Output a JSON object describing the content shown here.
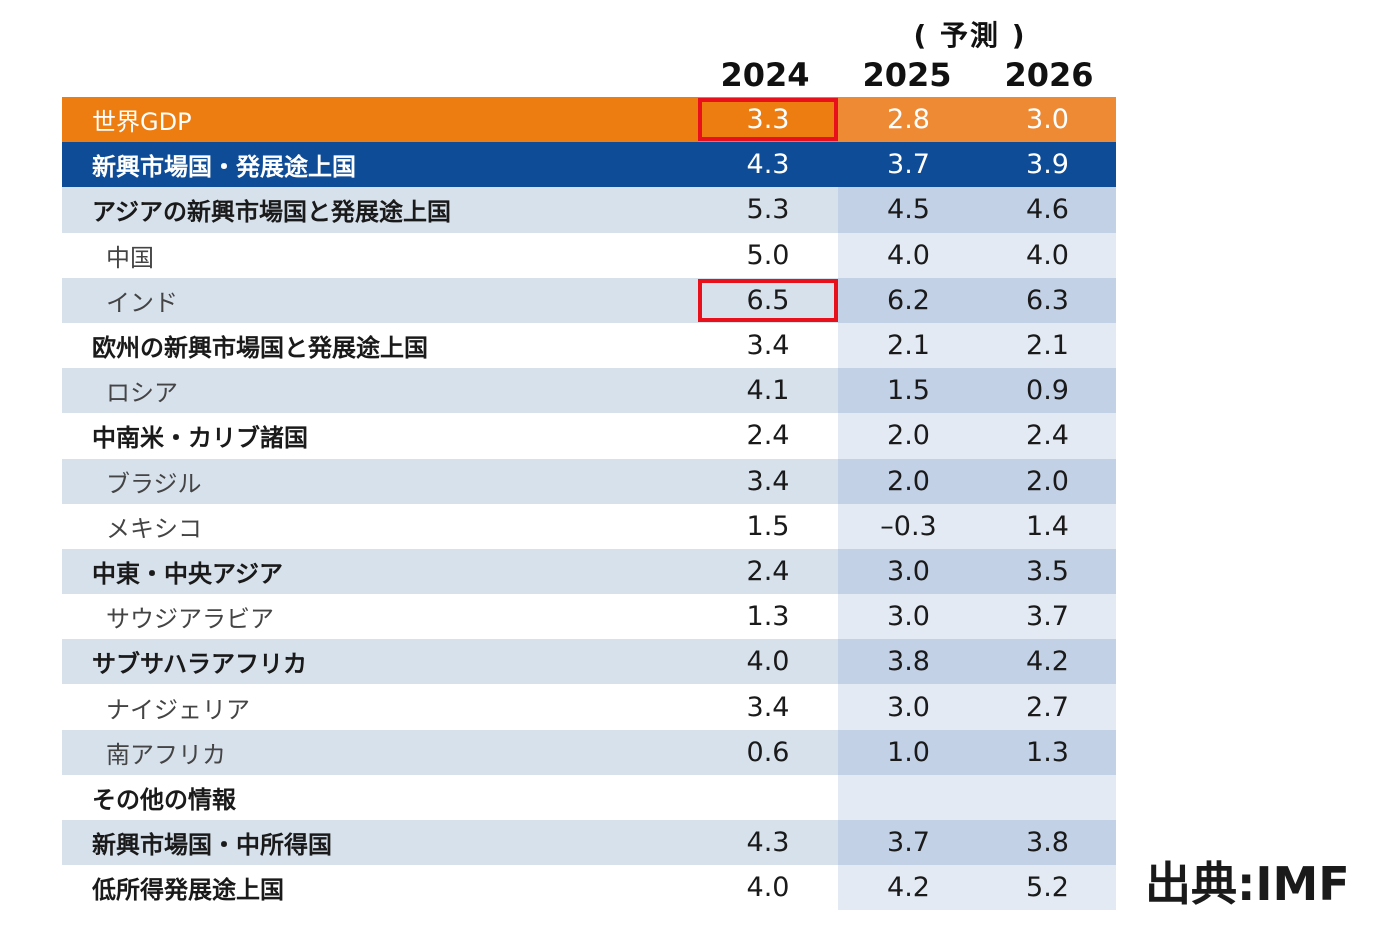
{
  "chart_data": {
    "type": "table",
    "forecast_label": "( 予測 )",
    "columns": [
      "2024",
      "2025",
      "2026"
    ],
    "rows": [
      {
        "label": "世界GDP",
        "values": [
          "3.3",
          "2.8",
          "3.0"
        ],
        "style": "world",
        "highlight": true
      },
      {
        "label": "新興市場国・発展途上国",
        "values": [
          "4.3",
          "3.7",
          "3.9"
        ],
        "style": "emerging"
      },
      {
        "label": "アジアの新興市場国と発展途上国",
        "values": [
          "5.3",
          "4.5",
          "4.6"
        ],
        "style": "light",
        "level": "main"
      },
      {
        "label": "中国",
        "values": [
          "5.0",
          "4.0",
          "4.0"
        ],
        "style": "white",
        "level": "sub"
      },
      {
        "label": "インド",
        "values": [
          "6.5",
          "6.2",
          "6.3"
        ],
        "style": "light",
        "level": "sub",
        "highlight": true
      },
      {
        "label": "欧州の新興市場国と発展途上国",
        "values": [
          "3.4",
          "2.1",
          "2.1"
        ],
        "style": "white",
        "level": "main"
      },
      {
        "label": "ロシア",
        "values": [
          "4.1",
          "1.5",
          "0.9"
        ],
        "style": "light",
        "level": "sub"
      },
      {
        "label": "中南米・カリブ諸国",
        "values": [
          "2.4",
          "2.0",
          "2.4"
        ],
        "style": "white",
        "level": "main"
      },
      {
        "label": "ブラジル",
        "values": [
          "3.4",
          "2.0",
          "2.0"
        ],
        "style": "light",
        "level": "sub"
      },
      {
        "label": "メキシコ",
        "values": [
          "1.5",
          "–0.3",
          "1.4"
        ],
        "style": "white",
        "level": "sub"
      },
      {
        "label": "中東・中央アジア",
        "values": [
          "2.4",
          "3.0",
          "3.5"
        ],
        "style": "light",
        "level": "main"
      },
      {
        "label": "サウジアラビア",
        "values": [
          "1.3",
          "3.0",
          "3.7"
        ],
        "style": "white",
        "level": "sub"
      },
      {
        "label": "サブサハラアフリカ",
        "values": [
          "4.0",
          "3.8",
          "4.2"
        ],
        "style": "light",
        "level": "main"
      },
      {
        "label": "ナイジェリア",
        "values": [
          "3.4",
          "3.0",
          "2.7"
        ],
        "style": "white",
        "level": "sub"
      },
      {
        "label": "南アフリカ",
        "values": [
          "0.6",
          "1.0",
          "1.3"
        ],
        "style": "light",
        "level": "sub"
      },
      {
        "label": "その他の情報",
        "values": [
          "",
          "",
          ""
        ],
        "style": "white",
        "level": "main"
      },
      {
        "label": "新興市場国・中所得国",
        "values": [
          "4.3",
          "3.7",
          "3.8"
        ],
        "style": "light",
        "level": "main"
      },
      {
        "label": "低所得発展途上国",
        "values": [
          "4.0",
          "4.2",
          "5.2"
        ],
        "style": "white",
        "level": "main"
      }
    ],
    "source": "出典:IMF",
    "colors": {
      "world_row": "#ed7d10",
      "emerging_row": "#0e4c97",
      "light_row": "#d7e1ec",
      "highlight_box": "#e8111b"
    }
  }
}
